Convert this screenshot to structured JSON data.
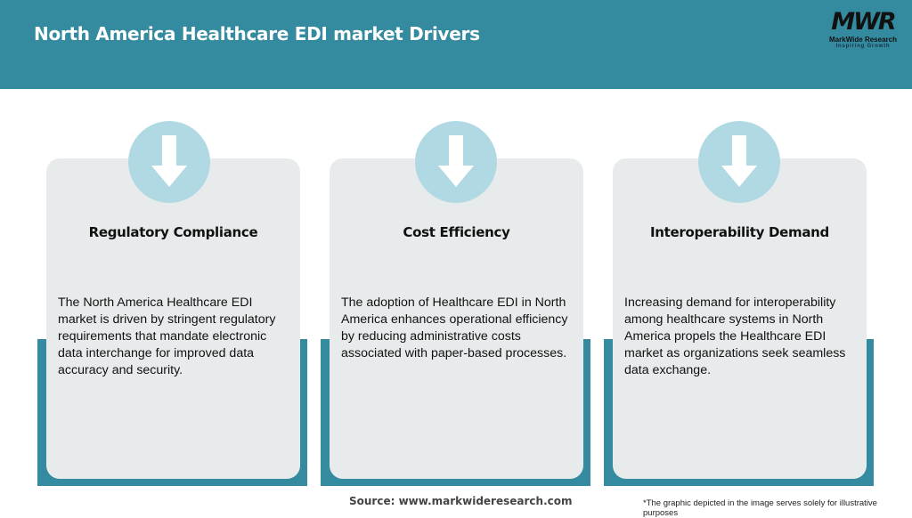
{
  "header": {
    "title": "North America Healthcare EDI market Drivers",
    "logo": {
      "mark": "MWR",
      "name": "MarkWide Research",
      "tagline": "Inspiring Growth"
    }
  },
  "colors": {
    "header": "#348a9f",
    "circle": "#b1d9e4",
    "card": "#e8ebec"
  },
  "cards": [
    {
      "icon": "arrow-down-icon",
      "title": "Regulatory Compliance",
      "text": "The North America Healthcare EDI market is driven by stringent regulatory requirements that mandate electronic data interchange for improved data accuracy and security."
    },
    {
      "icon": "arrow-down-icon",
      "title": "Cost Efficiency",
      "text": "The adoption of Healthcare EDI in North America enhances operational efficiency by reducing administrative costs associated with paper-based processes."
    },
    {
      "icon": "arrow-down-icon",
      "title": "Interoperability Demand",
      "text": "Increasing demand for interoperability among healthcare systems in North America propels the Healthcare EDI market as organizations seek seamless data exchange."
    }
  ],
  "footer": {
    "source": "Source: www.markwideresearch.com",
    "note": "*The graphic depicted in the image serves solely for illustrative purposes"
  }
}
